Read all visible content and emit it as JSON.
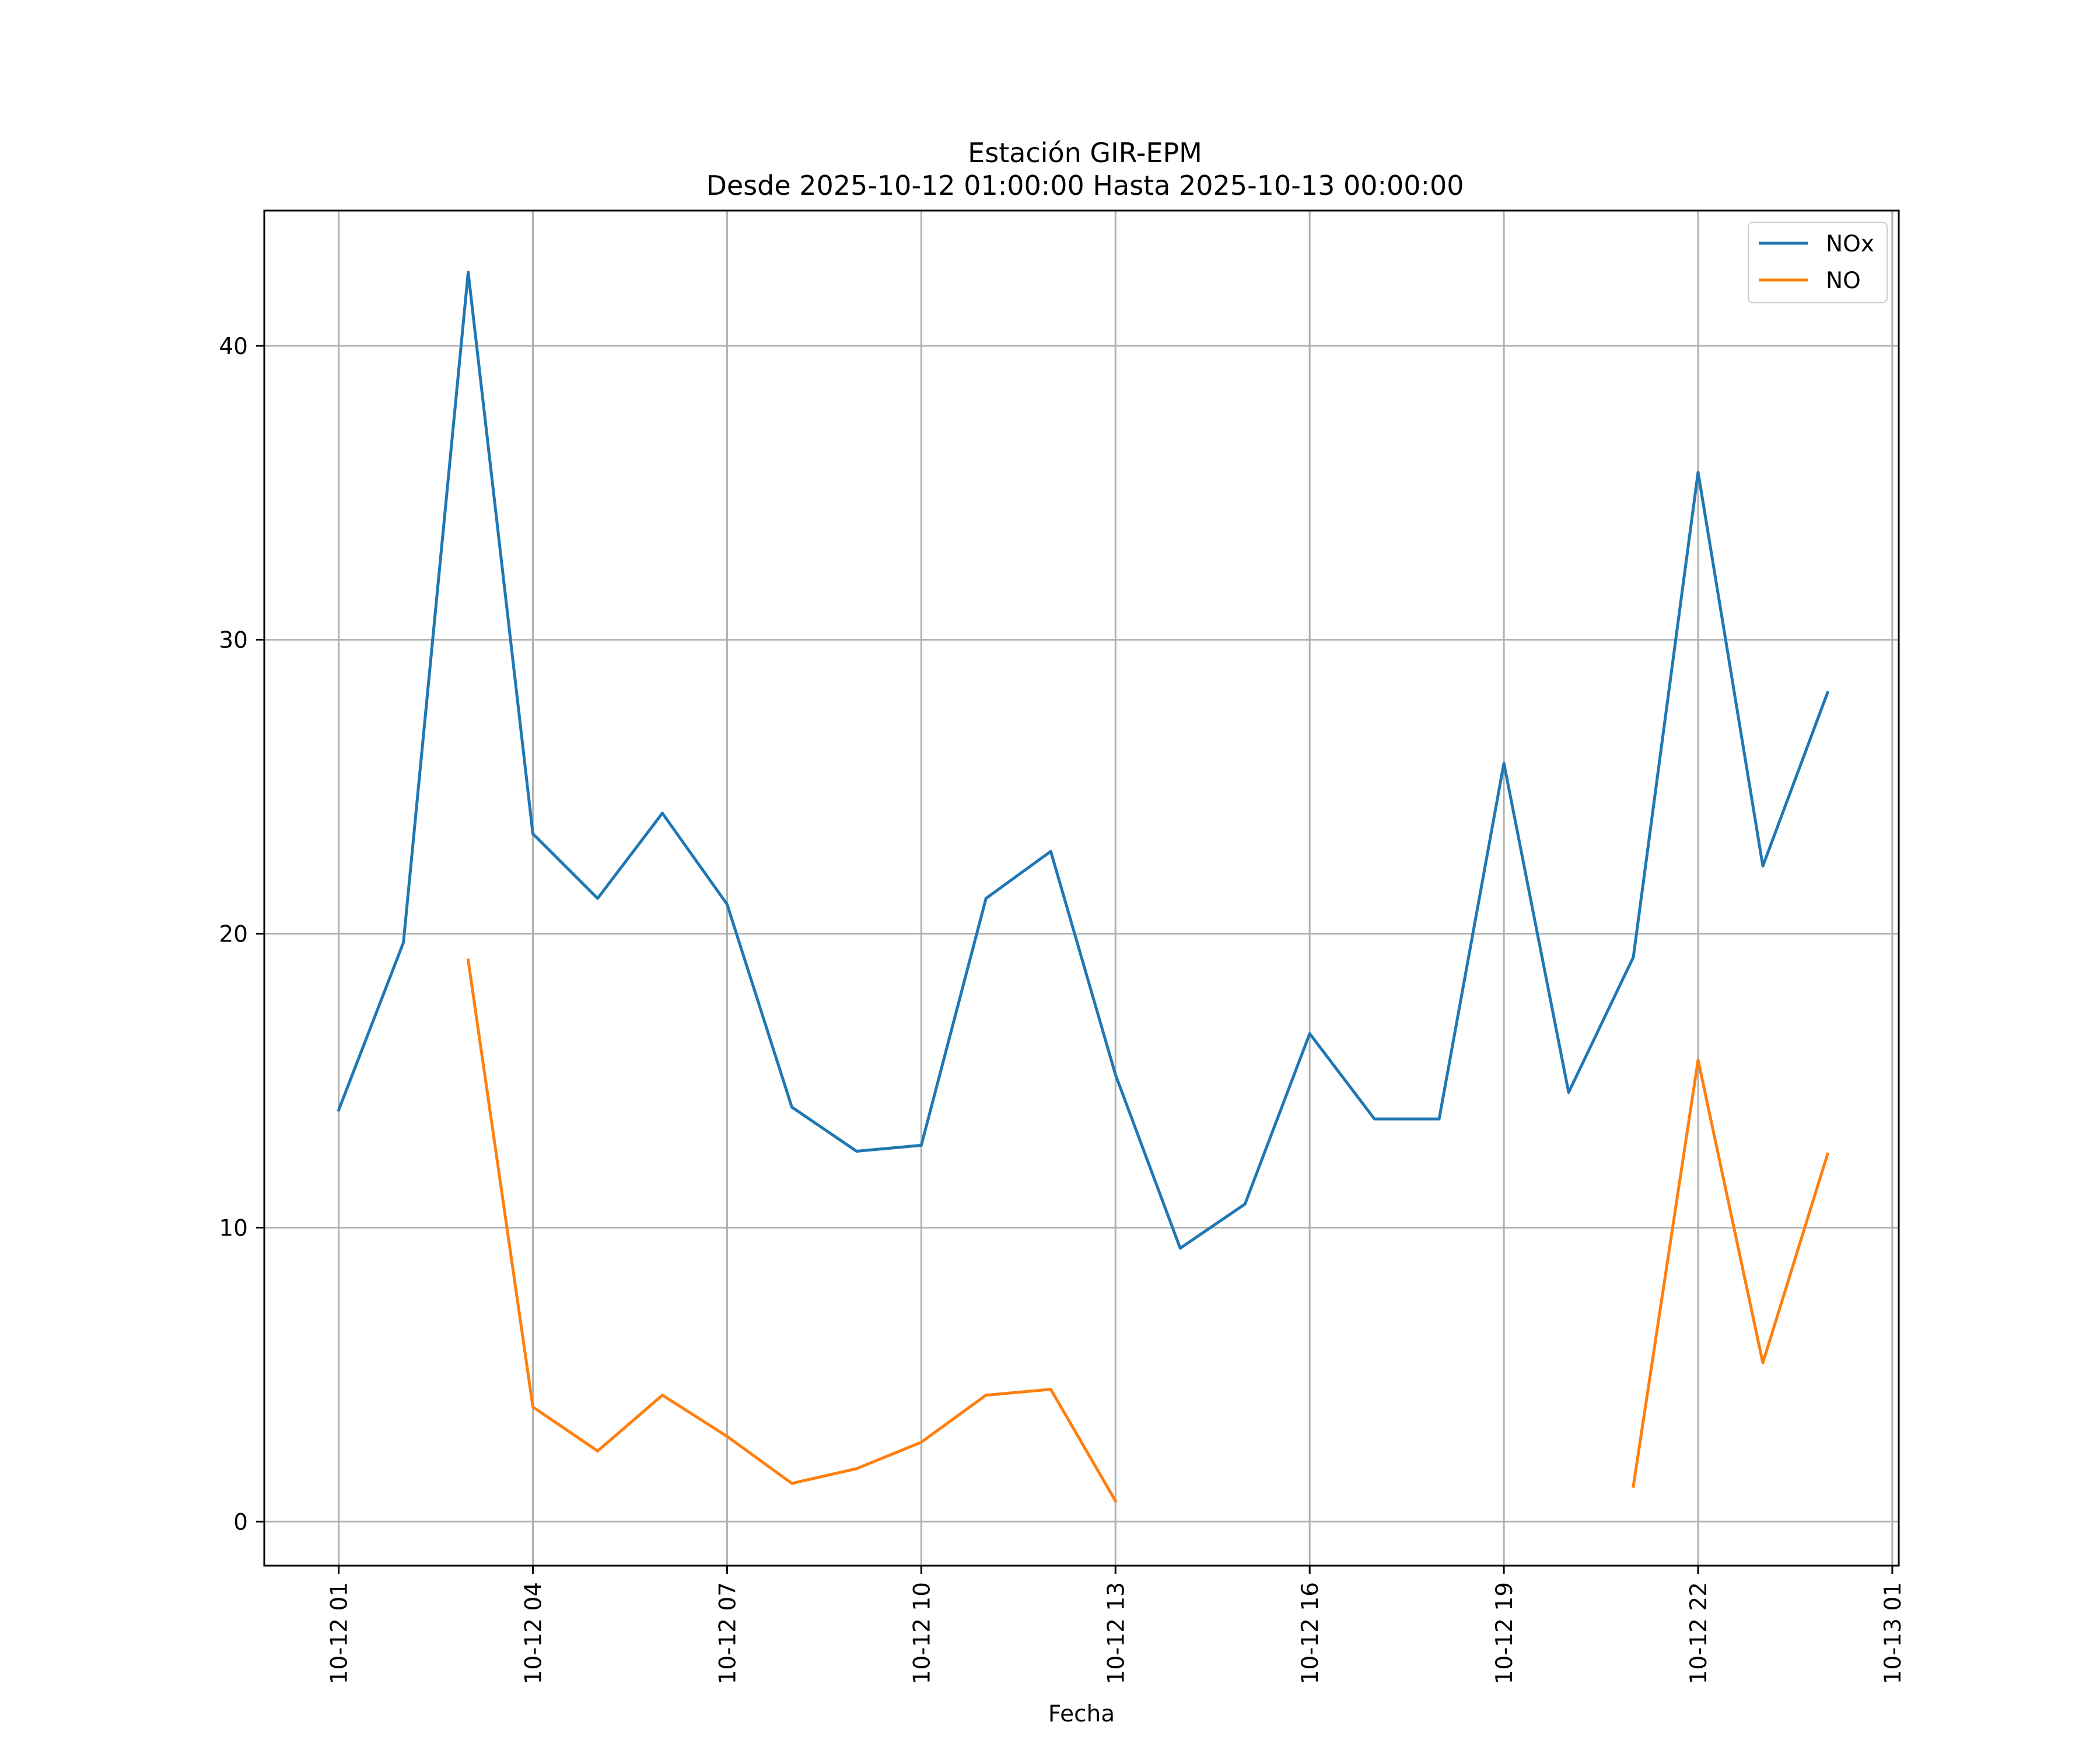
{
  "chart_data": {
    "type": "line",
    "title_line1": "Estación GIR-EPM",
    "title_line2": "Desde 2025-10-12 01:00:00 Hasta 2025-10-13 00:00:00",
    "xlabel": "Fecha",
    "ylabel": "",
    "x_hours": [
      1,
      2,
      3,
      4,
      5,
      6,
      7,
      8,
      9,
      10,
      11,
      12,
      13,
      14,
      15,
      16,
      17,
      18,
      19,
      20,
      21,
      22,
      23,
      24
    ],
    "xlim": [
      -0.15,
      25.1
    ],
    "ylim": [
      -1.5,
      44.6
    ],
    "x_ticks": [
      {
        "hour": 1,
        "label": "10-12 01"
      },
      {
        "hour": 4,
        "label": "10-12 04"
      },
      {
        "hour": 7,
        "label": "10-12 07"
      },
      {
        "hour": 10,
        "label": "10-12 10"
      },
      {
        "hour": 13,
        "label": "10-12 13"
      },
      {
        "hour": 16,
        "label": "10-12 16"
      },
      {
        "hour": 19,
        "label": "10-12 19"
      },
      {
        "hour": 22,
        "label": "10-12 22"
      },
      {
        "hour": 25,
        "label": "10-13 01"
      }
    ],
    "y_ticks": [
      {
        "value": 0,
        "label": "0"
      },
      {
        "value": 10,
        "label": "10"
      },
      {
        "value": 20,
        "label": "20"
      },
      {
        "value": 30,
        "label": "30"
      },
      {
        "value": 40,
        "label": "40"
      }
    ],
    "grid": true,
    "legend_position": "top-right",
    "series": [
      {
        "name": "NOx",
        "color": "#1f77b4",
        "values": [
          14.0,
          19.7,
          42.5,
          23.4,
          21.2,
          24.1,
          21.0,
          14.1,
          12.6,
          12.8,
          21.2,
          22.8,
          15.2,
          9.3,
          10.8,
          16.6,
          13.7,
          13.7,
          25.8,
          14.6,
          19.2,
          35.7,
          22.3,
          28.2
        ]
      },
      {
        "name": "NO",
        "color": "#ff7f0e",
        "values": [
          null,
          null,
          19.1,
          3.9,
          2.4,
          4.3,
          2.9,
          1.3,
          1.8,
          2.7,
          4.3,
          4.5,
          0.7,
          null,
          null,
          null,
          null,
          null,
          null,
          null,
          1.2,
          15.7,
          5.4,
          12.5
        ]
      }
    ]
  }
}
